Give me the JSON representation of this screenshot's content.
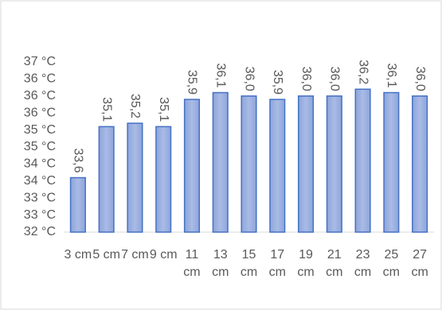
{
  "chart_data": {
    "type": "bar",
    "categories": [
      "3 cm",
      "5 cm",
      "7 cm",
      "9 cm",
      "11 cm",
      "13 cm",
      "15 cm",
      "17 cm",
      "19 cm",
      "21 cm",
      "23 cm",
      "25 cm",
      "27 cm"
    ],
    "values": [
      33.6,
      35.1,
      35.2,
      35.1,
      35.9,
      36.1,
      36.0,
      35.9,
      36.0,
      36.0,
      36.2,
      36.1,
      36.0
    ],
    "value_labels": [
      "33,6",
      "35,1",
      "35,2",
      "35,1",
      "35,9",
      "36,1",
      "36,0",
      "35,9",
      "36,0",
      "36,0",
      "36,2",
      "36,1",
      "36,0"
    ],
    "color": "#4472c4",
    "ylim": [
      32,
      37
    ],
    "yticks": [
      {
        "value": 32,
        "label": "32 °C"
      },
      {
        "value": 32.5,
        "label": "33 °C"
      },
      {
        "value": 33,
        "label": "33 °C"
      },
      {
        "value": 33.5,
        "label": "34 °C"
      },
      {
        "value": 34,
        "label": "34 °C"
      },
      {
        "value": 34.5,
        "label": "35 °C"
      },
      {
        "value": 35,
        "label": "35 °C"
      },
      {
        "value": 35.5,
        "label": "36 °C"
      },
      {
        "value": 36,
        "label": "36 °C"
      },
      {
        "value": 36.5,
        "label": "36 °C"
      },
      {
        "value": 37,
        "label": "37 °C"
      }
    ],
    "grid": false
  }
}
